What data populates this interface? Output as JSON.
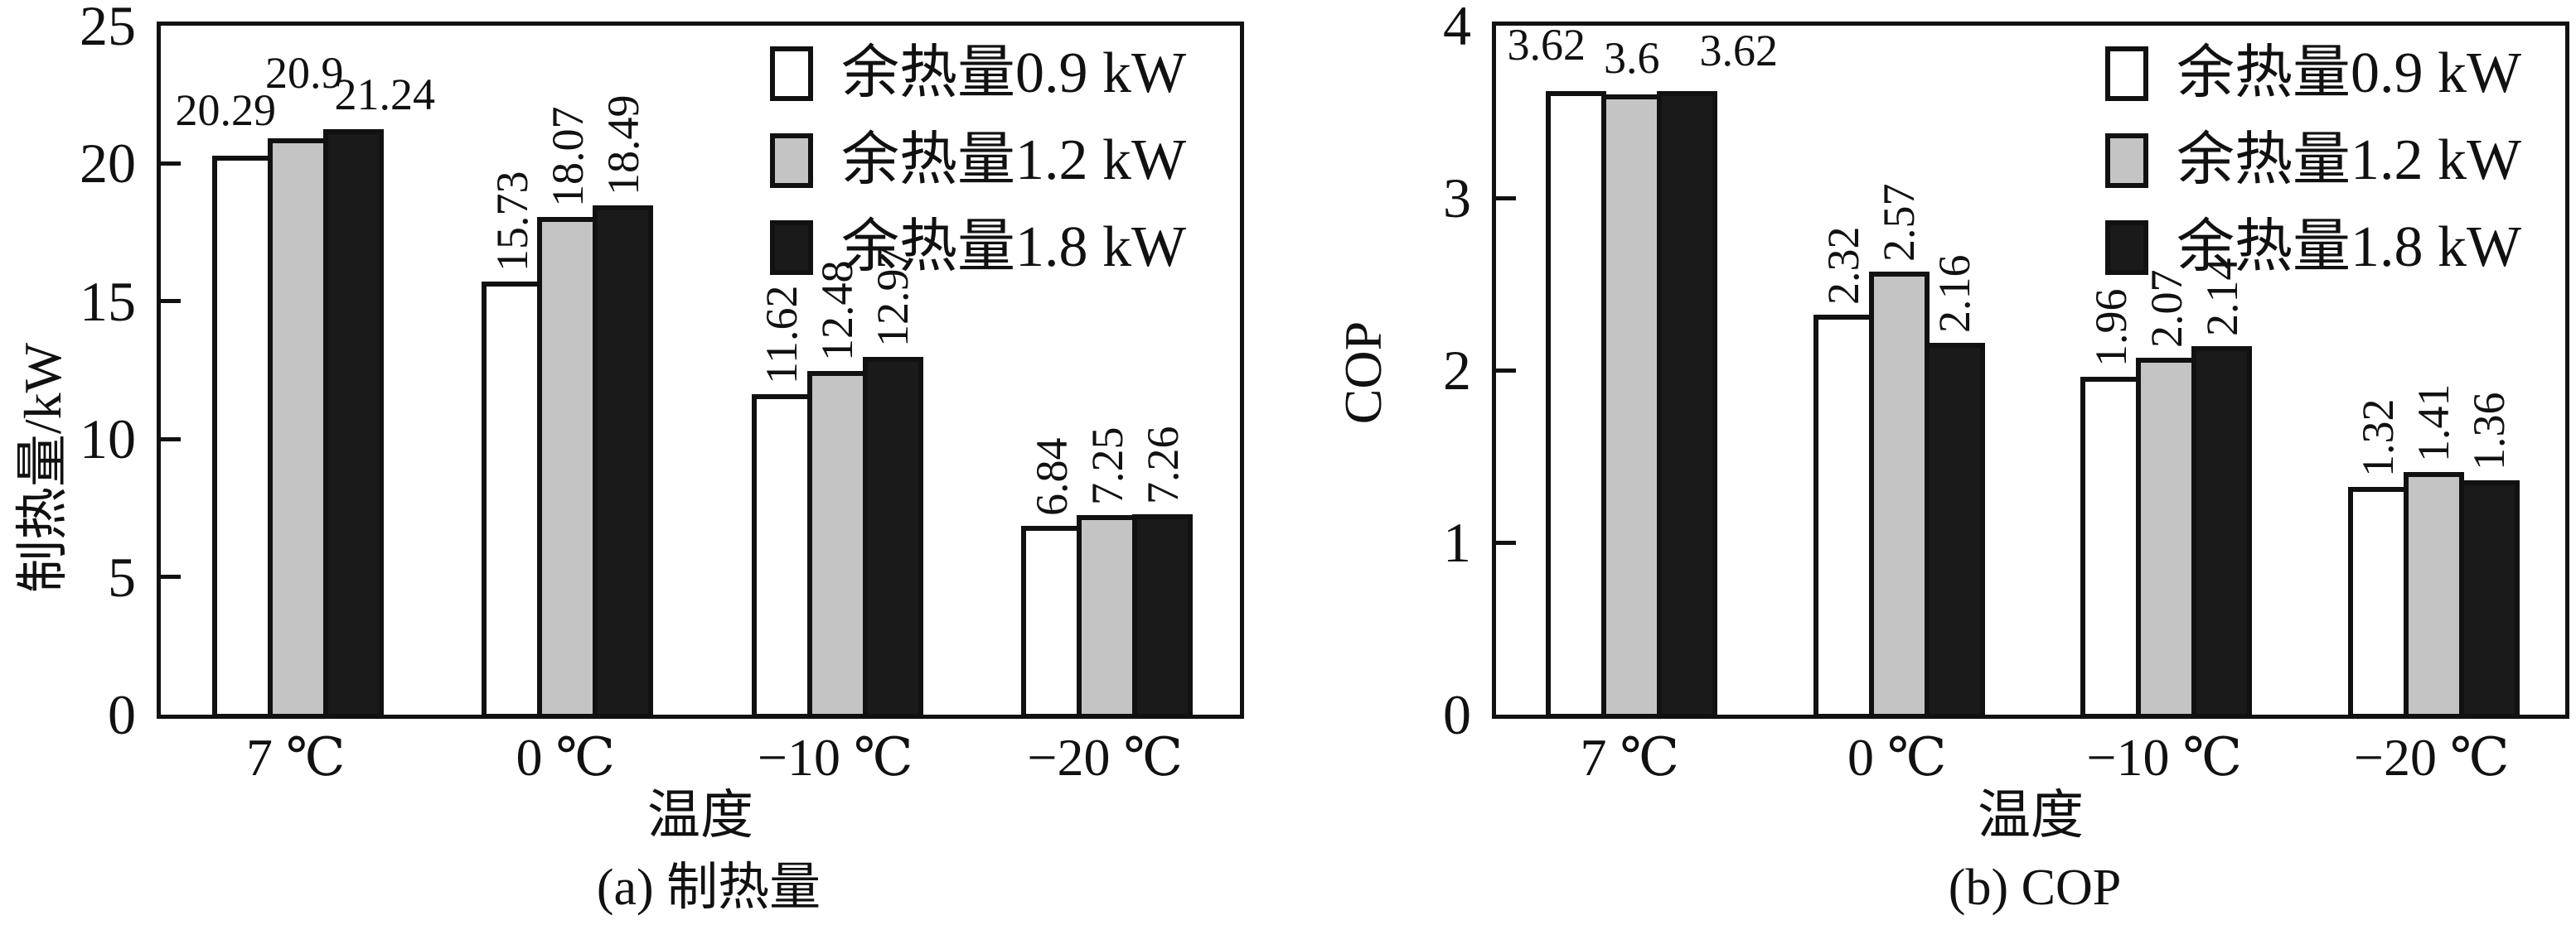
{
  "chart_data": [
    {
      "id": "a",
      "type": "bar",
      "caption": "(a) 制热量",
      "ylabel": "制热量/kW",
      "xlabel": "温度",
      "ylim": [
        0,
        25
      ],
      "yticks": [
        0,
        5,
        10,
        15,
        20,
        25
      ],
      "categories": [
        "7 ℃",
        "0 ℃",
        "−10 ℃",
        "−20 ℃"
      ],
      "series": [
        {
          "name": "余热量0.9 kW",
          "values": [
            20.29,
            15.73,
            11.62,
            6.84
          ]
        },
        {
          "name": "余热量1.2 kW",
          "values": [
            20.9,
            18.07,
            12.48,
            7.25
          ]
        },
        {
          "name": "余热量1.8 kW",
          "values": [
            21.24,
            18.49,
            12.97,
            7.26
          ]
        }
      ],
      "legend_position": "upper right",
      "grid": false
    },
    {
      "id": "b",
      "type": "bar",
      "caption": "(b) COP",
      "ylabel": "COP",
      "xlabel": "温度",
      "ylim": [
        0,
        4
      ],
      "yticks": [
        0,
        1,
        2,
        3,
        4
      ],
      "categories": [
        "7 ℃",
        "0 ℃",
        "−10 ℃",
        "−20 ℃"
      ],
      "series": [
        {
          "name": "余热量0.9 kW",
          "values": [
            3.62,
            2.32,
            1.96,
            1.32
          ]
        },
        {
          "name": "余热量1.2 kW",
          "values": [
            3.6,
            2.57,
            2.07,
            1.41
          ]
        },
        {
          "name": "余热量1.8 kW",
          "values": [
            3.62,
            2.16,
            2.14,
            1.36
          ]
        }
      ],
      "legend_position": "upper right",
      "grid": false
    }
  ],
  "legend": [
    "余热量0.9 kW",
    "余热量1.2 kW",
    "余热量1.8 kW"
  ],
  "colors": {
    "bar_fills": [
      "#ffffff",
      "#c4c4c4",
      "#1a1a1a"
    ],
    "bar_border": "#111111",
    "text": "#111111"
  }
}
